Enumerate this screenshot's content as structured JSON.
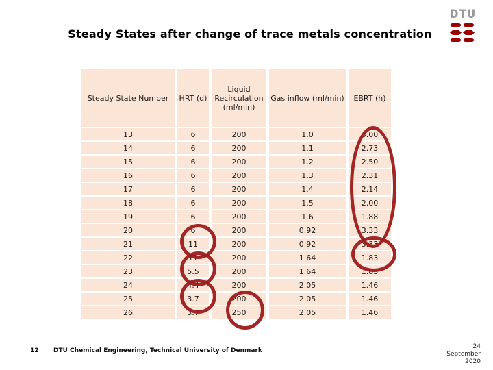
{
  "slide": {
    "title": "Steady States after change of trace metals concentration",
    "logo_text": "DTU",
    "footer": {
      "page_number": "12",
      "department": "DTU Chemical Engineering, Technical University of Denmark",
      "date_line1": "24",
      "date_line2": "September",
      "date_line3": "2020"
    }
  },
  "table": {
    "headers": [
      "Steady State Number",
      "HRT (d)",
      "Liquid Recirculation (ml/min)",
      "Gas inflow (ml/min)",
      "EBRT (h)"
    ],
    "rows": [
      [
        "13",
        "6",
        "200",
        "1.0",
        "3.00"
      ],
      [
        "14",
        "6",
        "200",
        "1.1",
        "2.73"
      ],
      [
        "15",
        "6",
        "200",
        "1.2",
        "2.50"
      ],
      [
        "16",
        "6",
        "200",
        "1.3",
        "2.31"
      ],
      [
        "17",
        "6",
        "200",
        "1.4",
        "2.14"
      ],
      [
        "18",
        "6",
        "200",
        "1.5",
        "2.00"
      ],
      [
        "19",
        "6",
        "200",
        "1.6",
        "1.88"
      ],
      [
        "20",
        "6",
        "200",
        "0.92",
        "3.33"
      ],
      [
        "21",
        "11",
        "200",
        "0.92",
        "3.33"
      ],
      [
        "22",
        "11",
        "200",
        "1.64",
        "1.83"
      ],
      [
        "23",
        "5.5",
        "200",
        "1.64",
        "1.83"
      ],
      [
        "24",
        "4.4",
        "200",
        "2.05",
        "1.46"
      ],
      [
        "25",
        "3.7",
        "200",
        "2.05",
        "1.46"
      ],
      [
        "26",
        "3.7",
        "250",
        "2.05",
        "1.46"
      ]
    ]
  },
  "annotations": {
    "description": "hand-drawn red ellipses",
    "targets": [
      "EBRT values rows 13-20",
      "EBRT values rows 21-22",
      "HRT values rows 20-21",
      "HRT values rows 22-23",
      "HRT values rows 24-25",
      "Liquid recirculation values rows 25-26"
    ]
  },
  "colors": {
    "cell_bg": "#fbe5d6",
    "annotation_red": "#9c1b1b",
    "logo_red": "#990000",
    "logo_gray": "#9a9a9a"
  }
}
